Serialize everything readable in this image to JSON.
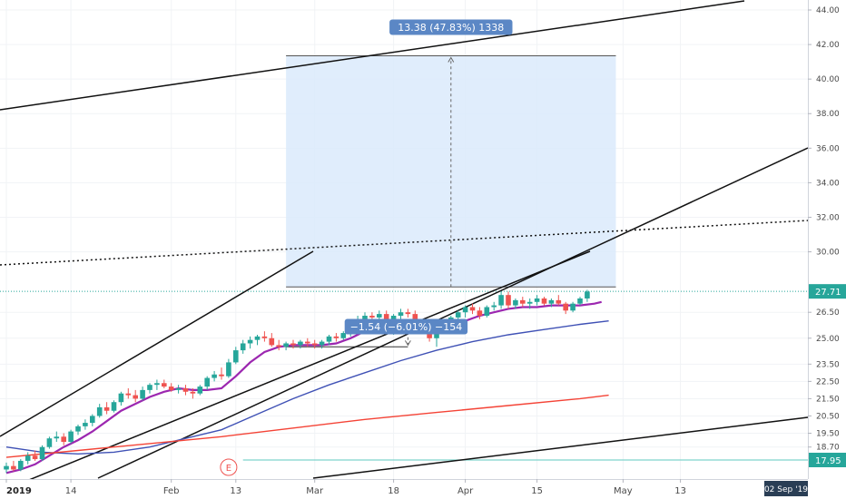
{
  "chart_data": {
    "type": "candlestick",
    "y_axis": {
      "position": "right",
      "range": [
        16.9,
        45.0
      ],
      "ticks": [
        "44.00",
        "42.00",
        "40.00",
        "38.00",
        "36.00",
        "34.00",
        "32.00",
        "30.00",
        "26.50",
        "25.00",
        "23.50",
        "22.50",
        "21.50",
        "20.50",
        "19.50",
        "18.70"
      ],
      "price_labels": [
        {
          "text": "27.71",
          "value": 27.71,
          "color": "#26a69a"
        },
        {
          "text": "17.95",
          "value": 17.95,
          "color": "#26a69a"
        }
      ]
    },
    "x_axis": {
      "ticks": [
        {
          "label": "2019",
          "bar": 0,
          "bold": true
        },
        {
          "label": "14",
          "bar": 9
        },
        {
          "label": "Feb",
          "bar": 23
        },
        {
          "label": "13",
          "bar": 32
        },
        {
          "label": "Mar",
          "bar": 43
        },
        {
          "label": "18",
          "bar": 54
        },
        {
          "label": "Apr",
          "bar": 64
        },
        {
          "label": "15",
          "bar": 74
        },
        {
          "label": "May",
          "bar": 86
        },
        {
          "label": "13",
          "bar": 94
        }
      ],
      "date_badge": "02 Sep '19"
    },
    "candles": [
      [
        17.4,
        17.8,
        17.2,
        17.6
      ],
      [
        17.6,
        17.9,
        17.3,
        17.4
      ],
      [
        17.4,
        18.0,
        17.3,
        17.9
      ],
      [
        17.9,
        18.4,
        17.7,
        18.2
      ],
      [
        18.2,
        18.5,
        17.9,
        18.0
      ],
      [
        18.0,
        18.8,
        17.9,
        18.7
      ],
      [
        18.7,
        19.3,
        18.6,
        19.2
      ],
      [
        19.2,
        19.6,
        19.0,
        19.3
      ],
      [
        19.3,
        19.5,
        18.8,
        19.0
      ],
      [
        19.0,
        19.7,
        18.9,
        19.6
      ],
      [
        19.6,
        20.0,
        19.4,
        19.9
      ],
      [
        19.9,
        20.3,
        19.7,
        20.1
      ],
      [
        20.1,
        20.6,
        19.9,
        20.5
      ],
      [
        20.5,
        21.2,
        20.4,
        21.0
      ],
      [
        21.0,
        21.3,
        20.6,
        20.8
      ],
      [
        20.8,
        21.4,
        20.7,
        21.3
      ],
      [
        21.3,
        21.9,
        21.1,
        21.8
      ],
      [
        21.8,
        22.1,
        21.5,
        21.7
      ],
      [
        21.7,
        22.0,
        21.3,
        21.5
      ],
      [
        21.5,
        22.2,
        21.4,
        22.0
      ],
      [
        22.0,
        22.4,
        21.8,
        22.3
      ],
      [
        22.3,
        22.6,
        22.0,
        22.4
      ],
      [
        22.4,
        22.6,
        22.1,
        22.2
      ],
      [
        22.2,
        22.4,
        21.9,
        22.0
      ],
      [
        22.0,
        22.3,
        21.8,
        22.1
      ],
      [
        22.1,
        22.3,
        21.7,
        21.9
      ],
      [
        21.9,
        22.1,
        21.5,
        21.8
      ],
      [
        21.8,
        22.3,
        21.7,
        22.2
      ],
      [
        22.2,
        22.8,
        22.0,
        22.7
      ],
      [
        22.7,
        23.1,
        22.5,
        22.9
      ],
      [
        22.9,
        23.3,
        22.6,
        22.8
      ],
      [
        22.8,
        23.8,
        22.7,
        23.6
      ],
      [
        23.6,
        24.5,
        23.5,
        24.3
      ],
      [
        24.3,
        24.9,
        24.1,
        24.7
      ],
      [
        24.7,
        25.1,
        24.4,
        24.9
      ],
      [
        24.9,
        25.2,
        24.6,
        25.1
      ],
      [
        25.1,
        25.4,
        24.8,
        25.0
      ],
      [
        25.0,
        25.3,
        24.5,
        24.6
      ],
      [
        24.6,
        24.9,
        24.3,
        24.5
      ],
      [
        24.5,
        24.8,
        24.3,
        24.7
      ],
      [
        24.7,
        24.9,
        24.4,
        24.6
      ],
      [
        24.6,
        24.9,
        24.4,
        24.8
      ],
      [
        24.8,
        25.0,
        24.5,
        24.7
      ],
      [
        24.7,
        24.9,
        24.4,
        24.6
      ],
      [
        24.6,
        24.9,
        24.4,
        24.8
      ],
      [
        24.8,
        25.2,
        24.6,
        25.1
      ],
      [
        25.1,
        25.3,
        24.8,
        25.0
      ],
      [
        25.0,
        25.4,
        24.9,
        25.3
      ],
      [
        25.3,
        25.8,
        25.1,
        25.7
      ],
      [
        25.7,
        26.3,
        25.5,
        26.1
      ],
      [
        26.1,
        26.5,
        25.9,
        26.3
      ],
      [
        26.3,
        26.5,
        26.0,
        26.2
      ],
      [
        26.2,
        26.6,
        26.0,
        26.4
      ],
      [
        26.4,
        26.6,
        25.9,
        26.0
      ],
      [
        26.0,
        26.4,
        25.2,
        26.3
      ],
      [
        26.3,
        26.7,
        26.1,
        26.5
      ],
      [
        26.5,
        26.7,
        26.2,
        26.4
      ],
      [
        26.4,
        26.6,
        25.6,
        25.8
      ],
      [
        25.8,
        26.1,
        25.3,
        25.4
      ],
      [
        25.4,
        25.6,
        24.8,
        25.0
      ],
      [
        25.0,
        25.8,
        24.5,
        25.6
      ],
      [
        25.6,
        26.0,
        25.4,
        25.7
      ],
      [
        25.7,
        26.3,
        25.6,
        26.2
      ],
      [
        26.2,
        26.6,
        25.9,
        26.5
      ],
      [
        26.5,
        26.9,
        26.2,
        26.8
      ],
      [
        26.8,
        27.0,
        26.4,
        26.6
      ],
      [
        26.6,
        26.8,
        26.1,
        26.3
      ],
      [
        26.3,
        26.9,
        26.2,
        26.8
      ],
      [
        26.8,
        27.1,
        26.6,
        26.9
      ],
      [
        26.9,
        27.7,
        26.7,
        27.5
      ],
      [
        27.5,
        27.7,
        26.7,
        26.9
      ],
      [
        26.9,
        27.3,
        26.7,
        27.2
      ],
      [
        27.2,
        27.4,
        26.8,
        27.0
      ],
      [
        27.0,
        27.3,
        26.7,
        27.1
      ],
      [
        27.1,
        27.5,
        26.9,
        27.3
      ],
      [
        27.3,
        27.4,
        26.9,
        27.0
      ],
      [
        27.0,
        27.3,
        26.8,
        27.2
      ],
      [
        27.2,
        27.5,
        26.9,
        27.0
      ],
      [
        27.0,
        27.1,
        26.4,
        26.6
      ],
      [
        26.6,
        27.1,
        26.5,
        27.0
      ],
      [
        27.0,
        27.4,
        26.9,
        27.3
      ],
      [
        27.3,
        27.8,
        27.1,
        27.7
      ]
    ],
    "moving_averages": [
      {
        "color": "#9c27b0",
        "values": [
          [
            0,
            17.2
          ],
          [
            2,
            17.4
          ],
          [
            4,
            17.7
          ],
          [
            6,
            18.2
          ],
          [
            8,
            18.7
          ],
          [
            10,
            19.1
          ],
          [
            12,
            19.6
          ],
          [
            14,
            20.2
          ],
          [
            16,
            20.8
          ],
          [
            18,
            21.2
          ],
          [
            20,
            21.6
          ],
          [
            22,
            21.9
          ],
          [
            24,
            22.1
          ],
          [
            26,
            22.0
          ],
          [
            28,
            22.0
          ],
          [
            30,
            22.1
          ],
          [
            32,
            22.8
          ],
          [
            34,
            23.6
          ],
          [
            36,
            24.2
          ],
          [
            38,
            24.5
          ],
          [
            40,
            24.6
          ],
          [
            42,
            24.6
          ],
          [
            44,
            24.6
          ],
          [
            46,
            24.7
          ],
          [
            48,
            25.0
          ],
          [
            50,
            25.4
          ],
          [
            52,
            25.7
          ],
          [
            54,
            25.9
          ],
          [
            56,
            26.0
          ],
          [
            58,
            25.8
          ],
          [
            60,
            25.6
          ],
          [
            62,
            25.7
          ],
          [
            64,
            26.0
          ],
          [
            66,
            26.3
          ],
          [
            68,
            26.5
          ],
          [
            70,
            26.7
          ],
          [
            72,
            26.8
          ],
          [
            74,
            26.8
          ],
          [
            76,
            26.9
          ],
          [
            78,
            26.9
          ],
          [
            80,
            26.9
          ],
          [
            82,
            27.0
          ],
          [
            83,
            27.1
          ]
        ]
      },
      {
        "color": "#3f51b5",
        "values": [
          [
            0,
            18.7
          ],
          [
            5,
            18.4
          ],
          [
            10,
            18.3
          ],
          [
            15,
            18.4
          ],
          [
            20,
            18.7
          ],
          [
            25,
            19.2
          ],
          [
            30,
            19.7
          ],
          [
            35,
            20.6
          ],
          [
            40,
            21.5
          ],
          [
            45,
            22.3
          ],
          [
            50,
            23.0
          ],
          [
            55,
            23.7
          ],
          [
            60,
            24.3
          ],
          [
            65,
            24.8
          ],
          [
            70,
            25.2
          ],
          [
            75,
            25.5
          ],
          [
            80,
            25.8
          ],
          [
            84,
            26.0
          ]
        ]
      },
      {
        "color": "#f44336",
        "values": [
          [
            0,
            18.1
          ],
          [
            10,
            18.5
          ],
          [
            20,
            18.9
          ],
          [
            30,
            19.3
          ],
          [
            40,
            19.8
          ],
          [
            50,
            20.3
          ],
          [
            60,
            20.7
          ],
          [
            70,
            21.1
          ],
          [
            80,
            21.5
          ],
          [
            84,
            21.7
          ]
        ]
      }
    ],
    "measure_up": {
      "label": "13.38 (47.83%) 1338"
    },
    "measure_down": {
      "label": "−1.54 (−6.01%) −154"
    },
    "earnings_marker": "E"
  }
}
